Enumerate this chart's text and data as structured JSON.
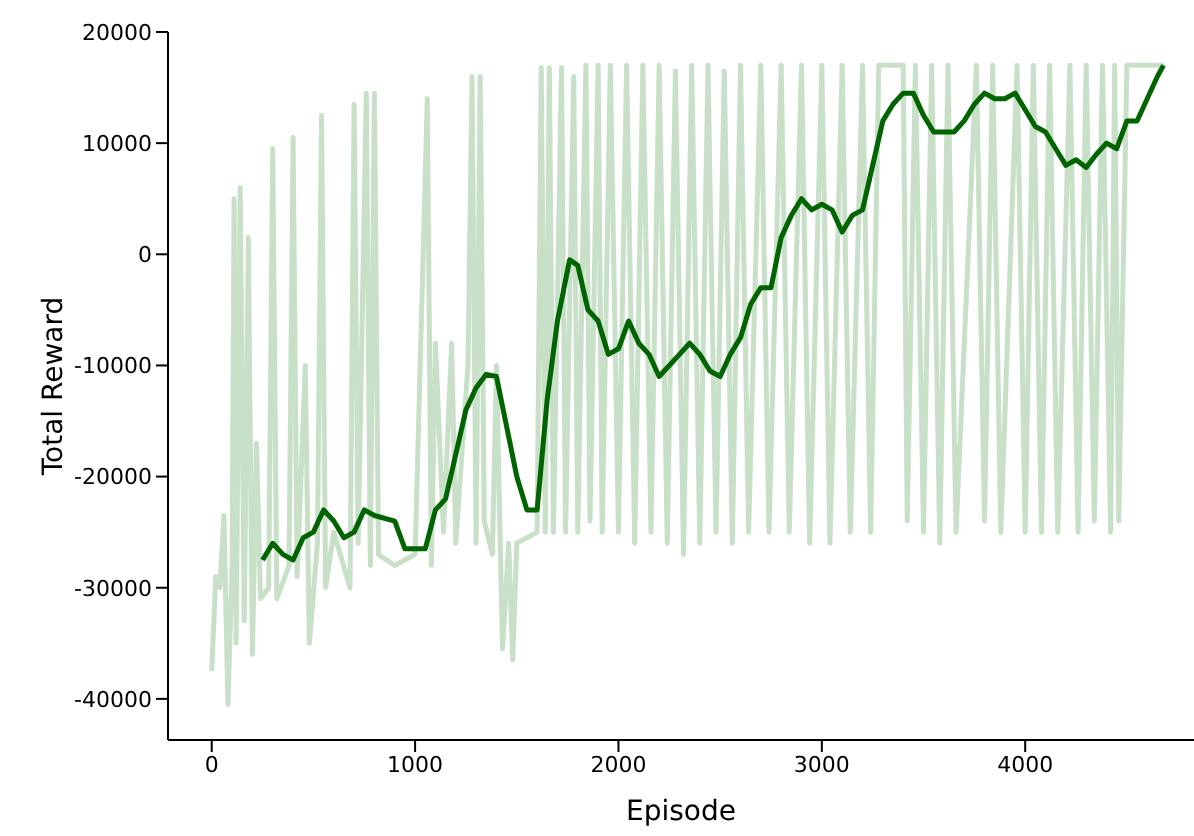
{
  "chart_data": {
    "type": "line",
    "xlabel": "Episode",
    "ylabel": "Total Reward",
    "xlim": [
      -215,
      4830
    ],
    "ylim": [
      -43700,
      20000
    ],
    "xticks": [
      0,
      1000,
      2000,
      3000,
      4000
    ],
    "yticks": [
      -40000,
      -30000,
      -20000,
      -10000,
      0,
      10000,
      20000
    ],
    "grid": false,
    "legend": false,
    "marker": "none",
    "line_style": "solid",
    "series": [
      {
        "color": "#c8dfc8",
        "x": [
          0,
          20,
          40,
          60,
          80,
          100,
          110,
          120,
          140,
          160,
          180,
          200,
          220,
          240,
          280,
          300,
          320,
          380,
          400,
          420,
          460,
          480,
          520,
          540,
          560,
          600,
          680,
          700,
          720,
          760,
          780,
          800,
          820,
          900,
          1000,
          1060,
          1080,
          1100,
          1140,
          1180,
          1200,
          1260,
          1280,
          1300,
          1320,
          1340,
          1380,
          1400,
          1430,
          1460,
          1480,
          1500,
          1600,
          1620,
          1640,
          1660,
          1680,
          1720,
          1740,
          1780,
          1800,
          1840,
          1860,
          1900,
          1920,
          1960,
          2000,
          2040,
          2080,
          2120,
          2160,
          2200,
          2240,
          2280,
          2320,
          2360,
          2400,
          2440,
          2480,
          2520,
          2560,
          2600,
          2640,
          2700,
          2740,
          2800,
          2840,
          2900,
          2940,
          3000,
          3040,
          3100,
          3140,
          3200,
          3240,
          3280,
          3400,
          3420,
          3460,
          3500,
          3540,
          3580,
          3620,
          3660,
          3760,
          3800,
          3840,
          3880,
          3960,
          4000,
          4040,
          4080,
          4120,
          4160,
          4220,
          4260,
          4300,
          4340,
          4380,
          4420,
          4440,
          4460,
          4500,
          4680
        ],
        "values": [
          -37500,
          -29000,
          -30000,
          -23500,
          -40500,
          -28000,
          5000,
          -35000,
          6000,
          -33000,
          1500,
          -36000,
          -17000,
          -31000,
          -30000,
          9500,
          -31000,
          -28000,
          10500,
          -29000,
          -10000,
          -35000,
          -26000,
          12500,
          -30000,
          -25000,
          -30000,
          13500,
          -26000,
          14500,
          -28000,
          14500,
          -27000,
          -28000,
          -27000,
          14000,
          -28000,
          -8000,
          -25000,
          -8000,
          -26000,
          -10000,
          16000,
          -26000,
          16000,
          -24000,
          -27000,
          -10000,
          -35500,
          -26000,
          -36500,
          -26000,
          -25000,
          16800,
          -25000,
          16800,
          -25000,
          16800,
          -25000,
          16000,
          -25000,
          17000,
          -24000,
          17000,
          -25000,
          17000,
          -25000,
          17000,
          -26000,
          17000,
          -25000,
          17000,
          -26000,
          16500,
          -27000,
          17000,
          -26000,
          17000,
          -25000,
          16500,
          -26000,
          17000,
          -25000,
          17000,
          -25000,
          17000,
          -25000,
          17000,
          -26000,
          17000,
          -26000,
          17000,
          -25000,
          17000,
          -25000,
          17000,
          17000,
          -24000,
          17000,
          -25000,
          17000,
          -26000,
          17000,
          -25000,
          17000,
          -24000,
          17000,
          -25000,
          17000,
          -25000,
          17000,
          -25000,
          17000,
          -25000,
          17000,
          -25000,
          17000,
          -24000,
          17000,
          -25000,
          17000,
          -24000,
          17000,
          17000
        ]
      },
      {
        "color": "#006400",
        "x": [
          250,
          300,
          350,
          400,
          450,
          500,
          550,
          600,
          650,
          700,
          750,
          800,
          900,
          950,
          1050,
          1100,
          1150,
          1200,
          1250,
          1300,
          1350,
          1400,
          1450,
          1500,
          1550,
          1600,
          1650,
          1700,
          1760,
          1800,
          1850,
          1900,
          1950,
          2000,
          2050,
          2100,
          2150,
          2200,
          2250,
          2300,
          2350,
          2400,
          2450,
          2500,
          2550,
          2600,
          2650,
          2700,
          2750,
          2800,
          2850,
          2900,
          2950,
          3000,
          3050,
          3100,
          3150,
          3200,
          3250,
          3300,
          3350,
          3400,
          3450,
          3500,
          3550,
          3600,
          3650,
          3700,
          3750,
          3800,
          3850,
          3900,
          3950,
          4000,
          4050,
          4100,
          4150,
          4200,
          4250,
          4300,
          4350,
          4400,
          4450,
          4500,
          4550,
          4600,
          4650,
          4680
        ],
        "values": [
          -27500,
          -26000,
          -27000,
          -27500,
          -25500,
          -25000,
          -23000,
          -24000,
          -25500,
          -25000,
          -23000,
          -23500,
          -24000,
          -26500,
          -26500,
          -23000,
          -22000,
          -18000,
          -14000,
          -12000,
          -10800,
          -11000,
          -15500,
          -20000,
          -23000,
          -23000,
          -13000,
          -6000,
          -500,
          -1000,
          -5000,
          -6000,
          -9000,
          -8500,
          -6000,
          -8000,
          -9000,
          -11000,
          -10000,
          -9000,
          -8000,
          -9000,
          -10500,
          -11000,
          -9000,
          -7500,
          -4500,
          -3000,
          -3000,
          1500,
          3500,
          5000,
          4000,
          4500,
          4000,
          2000,
          3500,
          4000,
          8000,
          12000,
          13500,
          14500,
          14500,
          12500,
          11000,
          11000,
          11000,
          12000,
          13500,
          14500,
          14000,
          14000,
          14500,
          13000,
          11500,
          11000,
          9500,
          8000,
          8500,
          7800,
          9000,
          10000,
          9500,
          12000,
          12000,
          14000,
          16000,
          17000
        ]
      }
    ]
  }
}
